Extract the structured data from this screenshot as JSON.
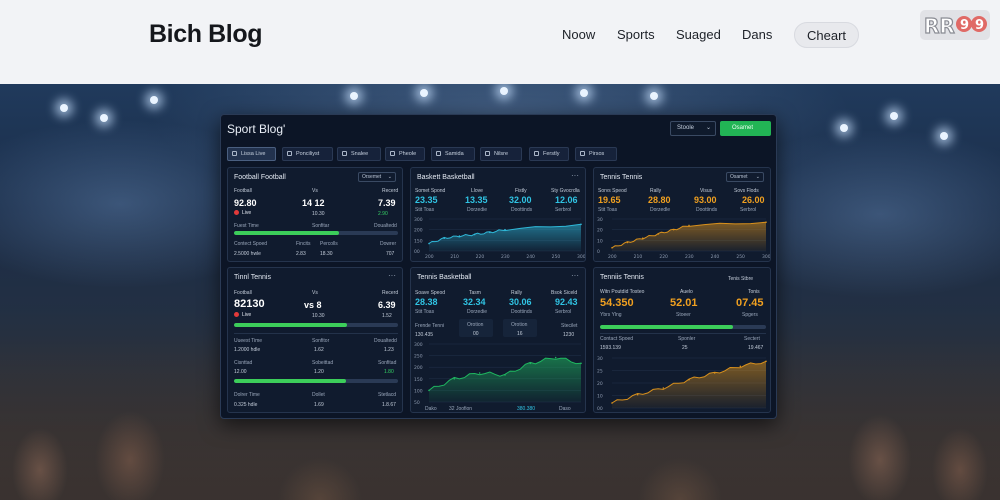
{
  "site": {
    "brand": "Bich Blog",
    "nav": [
      "Noow",
      "Sports",
      "Suaged",
      "Dans"
    ],
    "nav_pill": "Cheart",
    "logo_text": "RR99"
  },
  "dashboard": {
    "title": "Sport Blog'",
    "select_label": "Stoole",
    "button_label": "Osamet",
    "tabs": [
      "Lissa Live",
      "Ponciliyst",
      "Snalee",
      "Pheole",
      "Samida",
      "Nilsre",
      "Ferstly",
      "Pirsos"
    ],
    "active_tab": 0
  },
  "cards": {
    "c1": {
      "title": "Football Football",
      "select": "Orsemet",
      "head_l": "Football",
      "head_m": "Vs",
      "head_r": "Recerd",
      "n1": "92.80",
      "n2": "14  12",
      "n3": "7.39",
      "live": "Live",
      "sub_m": "10.30",
      "sub_r": "2.90",
      "row1_l": "Fuest Time",
      "row1_m": "Sonfitar",
      "row1_r": "Doualtedd",
      "progress": 0.64,
      "row2_l": "Contect Spoed",
      "row2_m": "Fincits",
      "row2_r": "Percolls",
      "row2_rr": "Dowrer",
      "row3_l": "2.5000 hwle",
      "row3_m": "2.83",
      "row3_mm": "18.30",
      "row3_r": "707"
    },
    "c2": {
      "title": "Baskett Basketball",
      "labels": [
        "Somet Spond",
        "Llove",
        "Fistly",
        "Sty Gvocrdla"
      ],
      "values": [
        "23.35",
        "13.35",
        "32.00",
        "12.06"
      ],
      "subs": [
        "Stit Toas",
        "Dorzedie",
        "Doottinds",
        "Serbrol"
      ],
      "yticks": [
        "300",
        "200",
        "150",
        "00"
      ],
      "xticks": [
        "200",
        "210",
        "220",
        "230",
        "240",
        "250",
        "300"
      ],
      "chart_data": {
        "type": "area",
        "color": "#2fb8d8",
        "x": [
          200,
          210,
          220,
          230,
          240,
          250,
          300
        ],
        "y": [
          70,
          120,
          140,
          155,
          175,
          200,
          250
        ],
        "ylim": [
          0,
          300
        ]
      }
    },
    "c3": {
      "title": "Tennis Tennis",
      "select": "Osamet",
      "labels": [
        "Sorvs Speod",
        "Rally",
        "Visus",
        "Sovs Flods"
      ],
      "values": [
        "19.65",
        "28.80",
        "93.00",
        "26.00"
      ],
      "subs": [
        "Stit Toas",
        "Dorzedle",
        "Doottinds",
        "Serbrol"
      ],
      "yticks": [
        "30",
        "20",
        "10",
        "0"
      ],
      "xticks": [
        "200",
        "210",
        "220",
        "230",
        "240",
        "250",
        "300"
      ],
      "chart_data": {
        "type": "area",
        "color": "#d8901c",
        "x": [
          200,
          210,
          220,
          230,
          240,
          250,
          300
        ],
        "y": [
          3,
          8,
          12,
          16,
          20,
          24,
          27
        ],
        "ylim": [
          0,
          30
        ]
      }
    },
    "c4": {
      "title": "Tinnl Tennis",
      "head_l": "Football",
      "head_m": "Vs",
      "head_r": "Recerd",
      "n1": "82130",
      "n2": "vs  8",
      "n3": "6.39",
      "live": "Live",
      "sub_m": "10.30",
      "sub_r": "1.52",
      "progress1": 0.69,
      "row1_l": "Uueest Time",
      "row1_m": "Sonfitor",
      "row1_r": "Doualtedd",
      "row2_l": "1.2000 hdle",
      "row2_m": "1.62",
      "row2_r": "1.23",
      "row3_l": "Cisnttad",
      "row3_m": "Sobeittad",
      "row3_r": "Sonfitad",
      "row3b_l": "12.00",
      "row3b_m": "1.20",
      "row3b_r": "1.80",
      "progress2": 0.68,
      "row4_l": "Dolrer Time",
      "row4_m": "Dollet",
      "row4_r": "Stetlacd",
      "row5_l": "0.325 hdle",
      "row5_m": "1.69",
      "row5_r": "1.8.67"
    },
    "c5": {
      "title": "Tennis Basketball",
      "labels": [
        "Soave Speod",
        "Tasm",
        "Rally",
        "Bsok Siceld"
      ],
      "values": [
        "28.38",
        "32.34",
        "30.06",
        "92.43"
      ],
      "subs": [
        "Stit Toas",
        "Dorzedie",
        "Doottinds",
        "Serbrol"
      ],
      "row2_l": "Frende Tenni",
      "row2_box1": "Orotion",
      "row2_box2": "Orotion",
      "row2_r": "Stecilet",
      "row2b_l": "130.435",
      "row2b_box1": "00",
      "row2b_box2": "16",
      "row2b_r": "1230",
      "yticks": [
        "300",
        "250",
        "200",
        "150",
        "100",
        "50"
      ],
      "footer": [
        "Dako",
        "32 Joofion",
        "380.380",
        "Daso"
      ],
      "chart_data": {
        "type": "area",
        "color": "#1fb860",
        "x": [
          0,
          1,
          2,
          3,
          4,
          5,
          6
        ],
        "y": [
          60,
          120,
          150,
          140,
          200,
          230,
          200
        ],
        "ylim": [
          0,
          300
        ]
      }
    },
    "c6": {
      "title": "Tenniis Tennis",
      "head_r": "Tenis Stbre",
      "label_l": "Witn Poutdid Tosteo",
      "label_m": "Auelo",
      "label_r": "Tonis",
      "values": [
        "54.350",
        "52.01",
        "07.45"
      ],
      "subs": [
        "Ybrs Ylng",
        "Stoeer",
        "Spgers"
      ],
      "progress": 0.8,
      "row1_l": "Contact Spoed",
      "row1_m": "Sponler",
      "row1_r": "Sectert",
      "row2_l": "1593.139",
      "row2_m": "25",
      "row2_r": "19.467",
      "yticks": [
        "30",
        "25",
        "20",
        "10",
        "00"
      ],
      "chart_data": {
        "type": "area",
        "color": "#d8901c",
        "x": [
          0,
          1,
          2,
          3,
          4,
          5,
          6
        ],
        "y": [
          3,
          8,
          12,
          17,
          21,
          25,
          28
        ],
        "ylim": [
          0,
          30
        ]
      }
    }
  }
}
